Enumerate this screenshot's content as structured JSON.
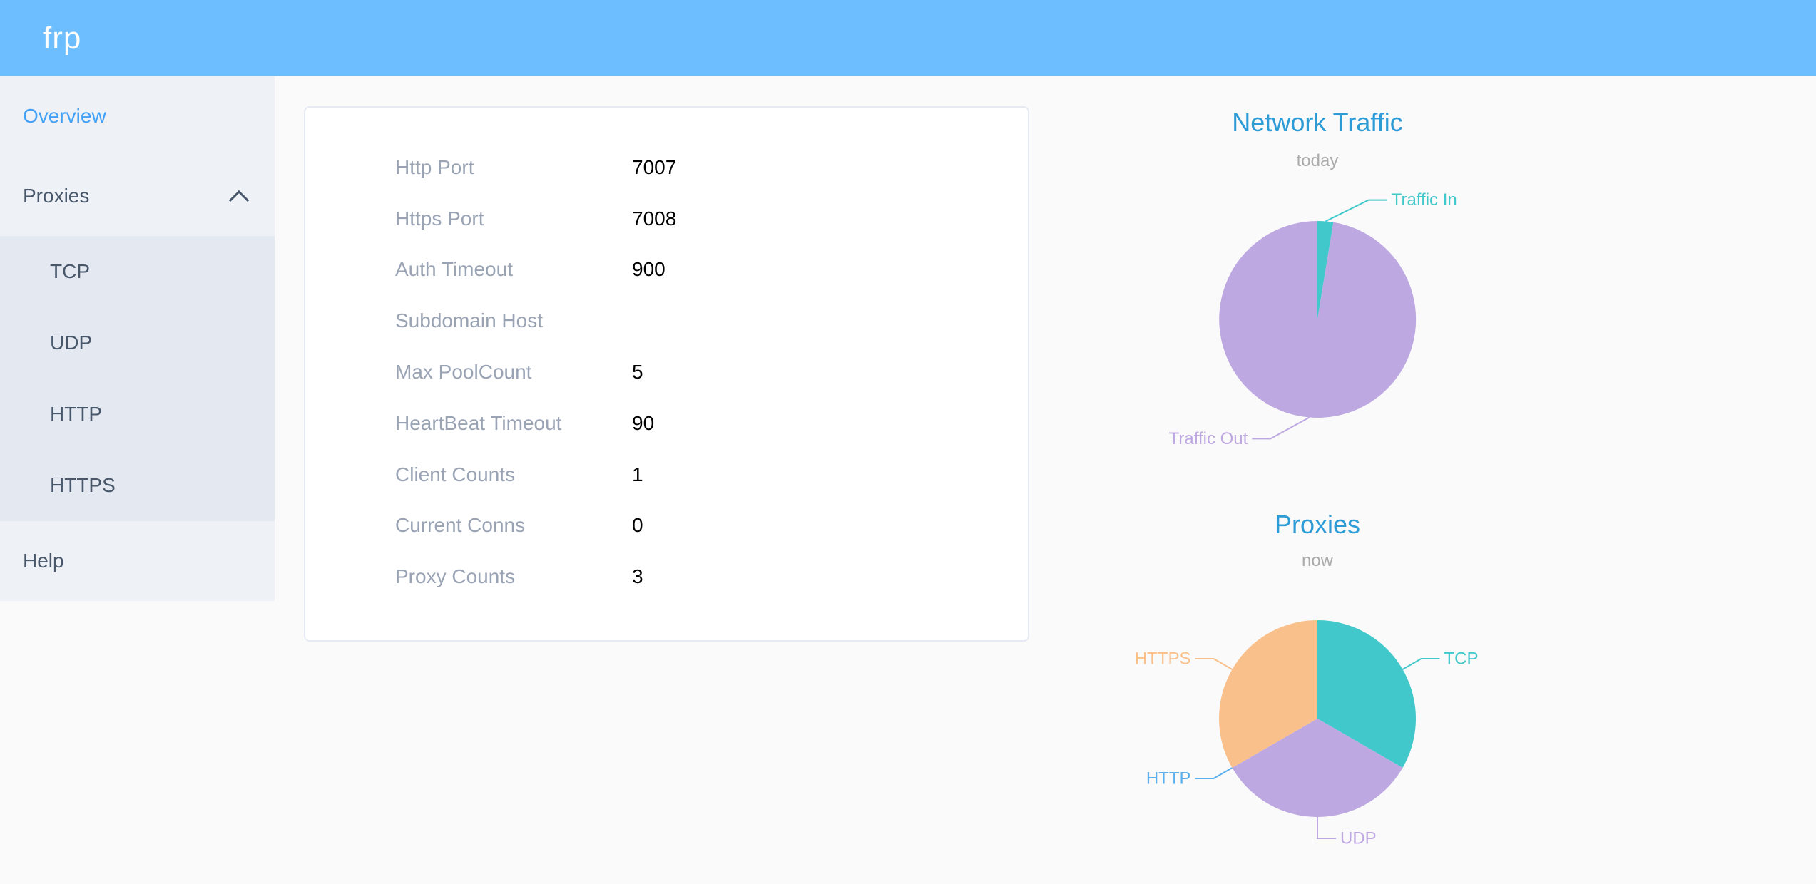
{
  "header": {
    "logo": "frp",
    "background": "#6cbeff"
  },
  "sidebar": {
    "items": [
      {
        "label": "Overview",
        "active": true
      },
      {
        "label": "Proxies",
        "expanded": true,
        "children": [
          {
            "label": "TCP"
          },
          {
            "label": "UDP"
          },
          {
            "label": "HTTP"
          },
          {
            "label": "HTTPS"
          }
        ]
      },
      {
        "label": "Help"
      }
    ],
    "active_color": "#42a1f6",
    "text_color": "#48576a"
  },
  "config_panel": {
    "rows": [
      {
        "label": "Http Port",
        "value": "7007"
      },
      {
        "label": "Https Port",
        "value": "7008"
      },
      {
        "label": "Auth Timeout",
        "value": "900"
      },
      {
        "label": "Subdomain Host",
        "value": ""
      },
      {
        "label": "Max PoolCount",
        "value": "5"
      },
      {
        "label": "HeartBeat Timeout",
        "value": "90"
      },
      {
        "label": "Client Counts",
        "value": "1"
      },
      {
        "label": "Current Conns",
        "value": "0"
      },
      {
        "label": "Proxy Counts",
        "value": "3"
      }
    ]
  },
  "chart_data": [
    {
      "type": "pie",
      "title": "Network Traffic",
      "subtitle": "today",
      "value_unit": "percent_estimated",
      "legend_position": "none",
      "label_style": "outside-with-leader-lines",
      "start_angle": "top-clockwise",
      "slices": [
        {
          "label": "Traffic In",
          "value": 2.6,
          "color": "#40c8ca",
          "label_dx": 58
        },
        {
          "label": "Traffic Out",
          "value": 97.4,
          "color": "#bda8e1",
          "label_dx": -52
        }
      ]
    },
    {
      "type": "pie",
      "title": "Proxies",
      "subtitle": "now",
      "value_unit": "proxy_count",
      "legend_position": "none",
      "label_style": "outside-with-leader-lines",
      "start_angle": "top-clockwise",
      "slices": [
        {
          "label": "TCP",
          "value": 1,
          "color": "#40c8ca",
          "label_dx": 0
        },
        {
          "label": "UDP",
          "value": 1,
          "color": "#bda8e1",
          "label_dx": 0
        },
        {
          "label": "HTTP",
          "value": 0,
          "color": "#5ab1ef",
          "label_dx": 0
        },
        {
          "label": "HTTPS",
          "value": 1,
          "color": "#fac08b",
          "label_dx": 0
        }
      ]
    }
  ],
  "theme": {
    "page_bg": "#fafafa",
    "sidebar_bg": "#eef1f6",
    "submenu_bg": "#e4e8f1",
    "panel_bg": "#ffffff",
    "panel_border": "#e6eaf5",
    "config_label_color": "#99a3b4",
    "config_value_color": "#000000",
    "chart_title_color": "#2d9bd6",
    "chart_subtitle_color": "#aaaaaa"
  }
}
